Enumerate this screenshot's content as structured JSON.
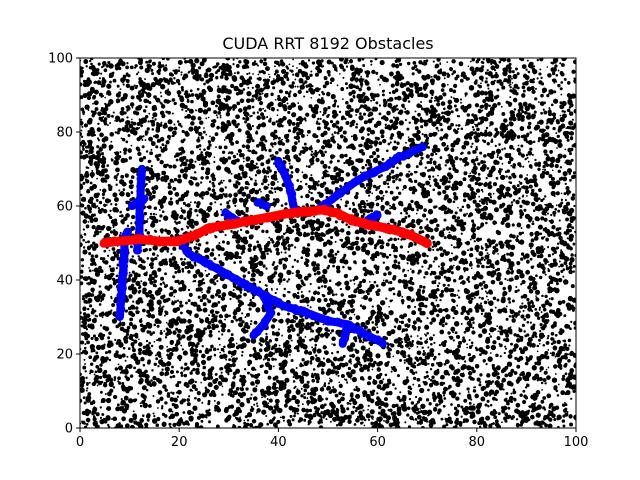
{
  "chart_data": {
    "type": "scatter",
    "title": "CUDA RRT 8192 Obstacles",
    "xlabel": "",
    "ylabel": "",
    "xlim": [
      0,
      100
    ],
    "ylim": [
      0,
      100
    ],
    "xticks": [
      "0",
      "20",
      "40",
      "60",
      "80",
      "100"
    ],
    "yticks": [
      "0",
      "20",
      "40",
      "60",
      "80",
      "100"
    ],
    "obstacle_count": 8192,
    "obstacle_color": "#000000",
    "tree_color": "#0000ff",
    "path_color": "#ff0000",
    "tree_branches": [
      [
        [
          8,
          30
        ],
        [
          8.5,
          38
        ],
        [
          8.8,
          45
        ],
        [
          9,
          50
        ],
        [
          9.5,
          53
        ]
      ],
      [
        [
          12.5,
          70
        ],
        [
          12.2,
          63
        ],
        [
          12,
          58
        ],
        [
          12,
          52
        ],
        [
          11.5,
          48
        ]
      ],
      [
        [
          10.5,
          60
        ],
        [
          12,
          61.5
        ],
        [
          13,
          62
        ]
      ],
      [
        [
          20,
          51
        ],
        [
          22,
          47
        ],
        [
          25,
          45
        ],
        [
          29,
          42
        ],
        [
          33,
          39
        ],
        [
          37,
          36
        ],
        [
          41,
          33
        ],
        [
          46,
          31
        ],
        [
          50,
          29
        ],
        [
          54,
          28
        ],
        [
          58,
          25
        ],
        [
          61,
          23
        ]
      ],
      [
        [
          37,
          36
        ],
        [
          38.5,
          31
        ],
        [
          37,
          28
        ],
        [
          35,
          25
        ]
      ],
      [
        [
          54,
          28
        ],
        [
          53.5,
          25
        ],
        [
          53,
          23
        ]
      ],
      [
        [
          40,
          72
        ],
        [
          41.5,
          68
        ],
        [
          42.5,
          64
        ],
        [
          43,
          60
        ]
      ],
      [
        [
          29.5,
          58
        ],
        [
          30.5,
          57
        ],
        [
          31.5,
          56
        ]
      ],
      [
        [
          36,
          61
        ],
        [
          37.5,
          60
        ]
      ],
      [
        [
          48,
          59
        ],
        [
          50,
          61
        ],
        [
          53,
          64
        ],
        [
          56,
          67
        ],
        [
          59,
          69
        ],
        [
          62,
          71
        ],
        [
          64,
          73
        ],
        [
          66,
          74
        ],
        [
          69,
          76
        ]
      ],
      [
        [
          57,
          55
        ],
        [
          58.5,
          56.5
        ],
        [
          60,
          57.5
        ]
      ]
    ],
    "path": [
      [
        5,
        50
      ],
      [
        8,
        50.5
      ],
      [
        12,
        51
      ],
      [
        16,
        50.5
      ],
      [
        20,
        50.5
      ],
      [
        23,
        52
      ],
      [
        26,
        54
      ],
      [
        30,
        55
      ],
      [
        34,
        56
      ],
      [
        38,
        57
      ],
      [
        42,
        58
      ],
      [
        46,
        58.5
      ],
      [
        49,
        59
      ],
      [
        52,
        58
      ],
      [
        55,
        56
      ],
      [
        58,
        55
      ],
      [
        62,
        54
      ],
      [
        66,
        52.5
      ],
      [
        70,
        50
      ]
    ]
  }
}
